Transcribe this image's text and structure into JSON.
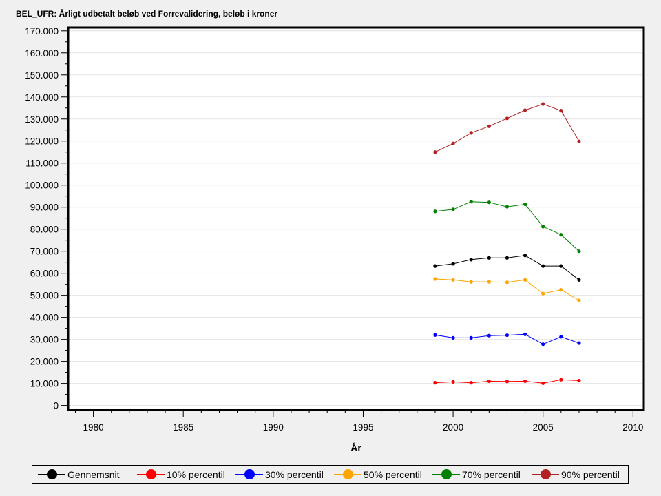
{
  "chart_data": {
    "type": "line",
    "title": "BEL_UFR: Årligt udbetalt beløb ved Forrevalidering, beløb i kroner",
    "xlabel": "År",
    "ylabel": "",
    "xlim": [
      1978.6,
      2010.6
    ],
    "ylim": [
      -2000,
      171500
    ],
    "x_ticks": [
      1980,
      1985,
      1990,
      1995,
      2000,
      2005,
      2010
    ],
    "y_ticks": [
      0,
      10000,
      20000,
      30000,
      40000,
      50000,
      60000,
      70000,
      80000,
      90000,
      100000,
      110000,
      120000,
      130000,
      140000,
      150000,
      160000,
      170000
    ],
    "x_tick_labels": [
      "1980",
      "1985",
      "1990",
      "1995",
      "2000",
      "2005",
      "2010"
    ],
    "y_tick_labels": [
      "0",
      "10.000",
      "20.000",
      "30.000",
      "40.000",
      "50.000",
      "60.000",
      "70.000",
      "80.000",
      "90.000",
      "100.000",
      "110.000",
      "120.000",
      "130.000",
      "140.000",
      "150.000",
      "160.000",
      "170.000"
    ],
    "grid": true,
    "legend_position": "bottom",
    "x": [
      1999,
      2000,
      2001,
      2002,
      2003,
      2004,
      2005,
      2006,
      2007
    ],
    "series": [
      {
        "name": "Gennemsnit",
        "color": "#000000",
        "values": [
          63300,
          64300,
          66200,
          67000,
          67000,
          68100,
          63300,
          63300,
          57000
        ]
      },
      {
        "name": "10% percentil",
        "color": "#ff0000",
        "values": [
          10300,
          10700,
          10300,
          11000,
          10900,
          11000,
          10100,
          11700,
          11300
        ]
      },
      {
        "name": "30% percentil",
        "color": "#0000ff",
        "values": [
          32000,
          30700,
          30700,
          31700,
          31900,
          32300,
          27800,
          31200,
          28300
        ]
      },
      {
        "name": "50% percentil",
        "color": "#ffa500",
        "values": [
          57400,
          57000,
          56100,
          56100,
          55900,
          57000,
          50800,
          52500,
          47700
        ]
      },
      {
        "name": "70% percentil",
        "color": "#008000",
        "values": [
          88100,
          89000,
          92500,
          92200,
          90200,
          91300,
          81200,
          77500,
          70000
        ]
      },
      {
        "name": "90% percentil",
        "color": "#b22222",
        "values": [
          115000,
          118900,
          123700,
          126700,
          130300,
          134000,
          136800,
          133800,
          119900
        ]
      }
    ]
  }
}
